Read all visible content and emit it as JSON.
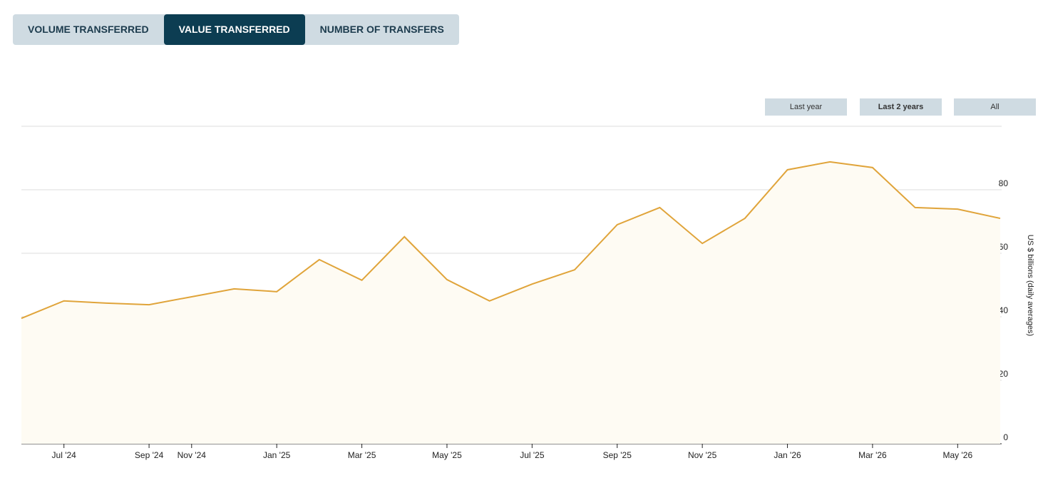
{
  "tabs": [
    "VOLUME TRANSFERRED",
    "VALUE TRANSFERRED",
    "NUMBER OF TRANSFERS"
  ],
  "range_buttons": [
    "Last year",
    "Last 2 years",
    "All"
  ],
  "chart_data": {
    "type": "area",
    "y_axis_label": "US $ billions (daily averages)",
    "categories": [
      null,
      "Jul '24",
      null,
      "Sep '24",
      "Nov '24",
      null,
      "Jan '25",
      null,
      "Mar '25",
      null,
      "May '25",
      null,
      "Jul '25",
      null,
      "Sep '25",
      null,
      "Nov '25",
      null,
      "Jan '26",
      null,
      "Mar '26",
      null,
      "May '26",
      null
    ],
    "series": [
      {
        "name": "Value transferred",
        "color": "#e0a43a",
        "values": [
          39.5,
          45,
          44.3,
          43.8,
          46.3,
          48.8,
          47.9,
          58,
          51.5,
          65.2,
          51.7,
          45,
          50.3,
          54.8,
          69,
          74.4,
          63.1,
          71,
          86.3,
          88.8,
          87,
          74.4,
          73.9,
          71
        ]
      }
    ],
    "ylim": [
      0,
      100
    ],
    "yticks": [
      0,
      20,
      40,
      60,
      80
    ],
    "grid": true
  }
}
